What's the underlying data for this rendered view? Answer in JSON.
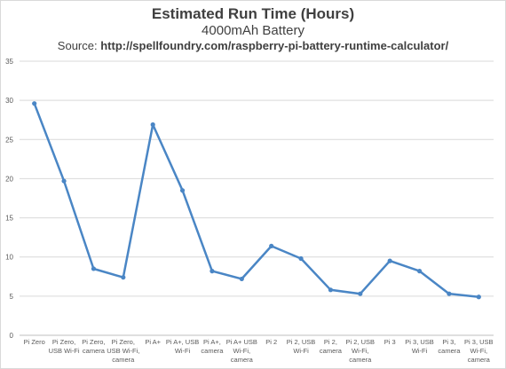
{
  "chart_data": {
    "type": "line",
    "title": "Estimated Run Time (Hours)",
    "subtitle": "4000mAh Battery",
    "source_label": "Source: ",
    "source_url": "http://spellfoundry.com/raspberry-pi-battery-runtime-calculator/",
    "xlabel": "",
    "ylabel": "",
    "ylim": [
      0,
      35
    ],
    "yticks": [
      0,
      5,
      10,
      15,
      20,
      25,
      30,
      35
    ],
    "grid": true,
    "legend": "none",
    "categories": [
      [
        "Pi Zero"
      ],
      [
        "Pi Zero,",
        "USB Wi-Fi"
      ],
      [
        "Pi Zero,",
        "camera"
      ],
      [
        "Pi Zero,",
        "USB Wi-Fi,",
        "camera"
      ],
      [
        "Pi A+"
      ],
      [
        "Pi A+, USB",
        "Wi-Fi"
      ],
      [
        "Pi A+,",
        "camera"
      ],
      [
        "Pi A+ USB",
        "Wi-Fi,",
        "camera"
      ],
      [
        "Pi 2"
      ],
      [
        "Pi 2, USB",
        "Wi-Fi"
      ],
      [
        "Pi 2,",
        "camera"
      ],
      [
        "Pi 2, USB",
        "Wi-Fi,",
        "camera"
      ],
      [
        "Pi 3"
      ],
      [
        "Pi 3, USB",
        "Wi-Fi"
      ],
      [
        "Pi 3,",
        "camera"
      ],
      [
        "Pi 3, USB",
        "Wi-Fi,",
        "camera"
      ]
    ],
    "series": [
      {
        "values": [
          29.6,
          19.7,
          8.5,
          7.4,
          26.9,
          18.5,
          8.2,
          7.2,
          11.4,
          9.8,
          5.8,
          5.3,
          9.5,
          8.2,
          5.3,
          4.9
        ],
        "color": "#4a86c5"
      }
    ]
  }
}
